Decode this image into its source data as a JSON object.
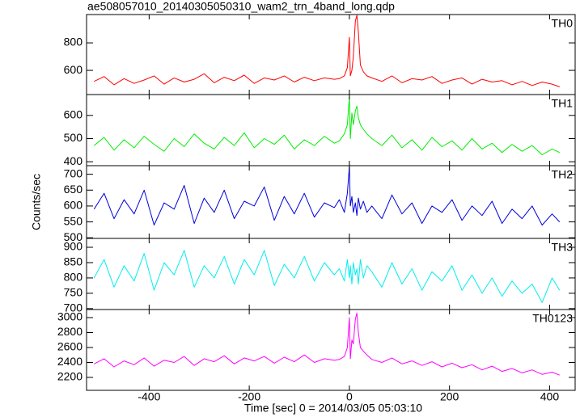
{
  "title": "ae508057010_20140305050310_wam2_trn_4band_long.qdp",
  "xlabel": "Time [sec] 0 = 2014/03/05 05:03:10",
  "ylabel": "Counts/sec",
  "xlim": [
    -525,
    451
  ],
  "xticks": [
    -400,
    -200,
    0,
    200,
    400
  ],
  "x": [
    -510,
    -490,
    -470,
    -450,
    -430,
    -410,
    -390,
    -370,
    -350,
    -330,
    -310,
    -290,
    -270,
    -250,
    -230,
    -210,
    -190,
    -170,
    -150,
    -130,
    -110,
    -90,
    -70,
    -50,
    -30,
    -20,
    -10,
    -4,
    0,
    2,
    5,
    8,
    12,
    15,
    18,
    22,
    28,
    35,
    45,
    65,
    85,
    105,
    125,
    145,
    165,
    185,
    205,
    225,
    245,
    265,
    285,
    305,
    325,
    345,
    365,
    385,
    405,
    420
  ],
  "chart_data": [
    {
      "type": "line",
      "name": "TH0",
      "color": "#ff0000",
      "ylim": [
        424,
        1006
      ],
      "yticks": [
        600,
        800
      ],
      "values": [
        520,
        555,
        495,
        540,
        505,
        530,
        560,
        500,
        545,
        515,
        535,
        575,
        510,
        550,
        525,
        565,
        505,
        545,
        530,
        560,
        515,
        550,
        525,
        545,
        535,
        540,
        560,
        620,
        840,
        560,
        600,
        700,
        960,
        1000,
        880,
        640,
        590,
        560,
        545,
        520,
        560,
        510,
        540,
        530,
        555,
        505,
        530,
        545,
        500,
        535,
        515,
        525,
        495,
        520,
        490,
        515,
        500,
        480
      ]
    },
    {
      "type": "line",
      "name": "TH1",
      "color": "#00ee00",
      "ylim": [
        383,
        690
      ],
      "yticks": [
        400,
        500,
        600
      ],
      "values": [
        470,
        505,
        450,
        495,
        460,
        510,
        475,
        445,
        500,
        465,
        520,
        480,
        455,
        505,
        470,
        525,
        460,
        500,
        475,
        515,
        455,
        495,
        470,
        510,
        480,
        490,
        520,
        560,
        680,
        500,
        610,
        560,
        620,
        640,
        590,
        560,
        540,
        520,
        500,
        470,
        515,
        460,
        495,
        450,
        505,
        465,
        490,
        450,
        500,
        455,
        480,
        440,
        475,
        445,
        470,
        430,
        455,
        440
      ]
    },
    {
      "type": "line",
      "name": "TH2",
      "color": "#0000dd",
      "ylim": [
        498,
        727
      ],
      "yticks": [
        500,
        550,
        600,
        650,
        700
      ],
      "values": [
        590,
        640,
        560,
        620,
        575,
        650,
        540,
        610,
        590,
        665,
        545,
        625,
        580,
        650,
        560,
        615,
        600,
        660,
        555,
        630,
        575,
        640,
        565,
        610,
        595,
        620,
        580,
        640,
        725,
        600,
        630,
        580,
        610,
        570,
        625,
        590,
        615,
        580,
        600,
        560,
        635,
        575,
        610,
        545,
        600,
        580,
        620,
        555,
        600,
        570,
        615,
        545,
        590,
        560,
        600,
        540,
        575,
        550
      ]
    },
    {
      "type": "line",
      "name": "TH3",
      "color": "#00eeee",
      "ylim": [
        697,
        929
      ],
      "yticks": [
        700,
        750,
        800,
        850,
        900
      ],
      "values": [
        800,
        860,
        770,
        840,
        790,
        880,
        760,
        850,
        810,
        890,
        770,
        840,
        800,
        870,
        780,
        860,
        810,
        890,
        775,
        845,
        800,
        870,
        790,
        850,
        810,
        830,
        790,
        860,
        800,
        840,
        780,
        850,
        810,
        830,
        780,
        860,
        800,
        840,
        820,
        770,
        850,
        780,
        830,
        760,
        820,
        790,
        840,
        760,
        810,
        750,
        800,
        740,
        790,
        750,
        780,
        720,
        800,
        760
      ]
    },
    {
      "type": "line",
      "name": "TH0123",
      "color": "#ff00ff",
      "ylim": [
        2027,
        3108
      ],
      "yticks": [
        2200,
        2400,
        2600,
        2800,
        3000
      ],
      "values": [
        2380,
        2450,
        2340,
        2420,
        2370,
        2460,
        2350,
        2430,
        2400,
        2480,
        2360,
        2450,
        2410,
        2490,
        2380,
        2460,
        2420,
        2480,
        2390,
        2470,
        2410,
        2500,
        2400,
        2450,
        2430,
        2440,
        2480,
        2600,
        3000,
        2450,
        2700,
        2650,
        2980,
        3060,
        2800,
        2600,
        2550,
        2500,
        2440,
        2400,
        2460,
        2380,
        2420,
        2360,
        2410,
        2340,
        2390,
        2330,
        2370,
        2300,
        2350,
        2280,
        2320,
        2260,
        2300,
        2240,
        2270,
        2230
      ]
    }
  ]
}
